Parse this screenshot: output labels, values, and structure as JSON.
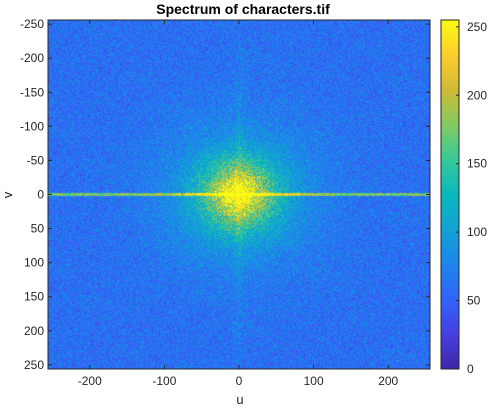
{
  "chart_data": {
    "type": "heatmap",
    "title": "Spectrum of characters.tif",
    "xlabel": "u",
    "ylabel": "v",
    "xlim": [
      -256,
      256
    ],
    "ylim": [
      -256,
      256
    ],
    "y_direction": "reversed",
    "x_ticks": [
      -200,
      -100,
      0,
      100,
      200
    ],
    "x_tick_labels": [
      "-200",
      "-100",
      "0",
      "100",
      "200"
    ],
    "y_ticks": [
      -250,
      -200,
      -150,
      -100,
      -50,
      0,
      50,
      100,
      150,
      200,
      250
    ],
    "y_tick_labels": [
      "-250",
      "-200",
      "-150",
      "-100",
      "-50",
      "0",
      "50",
      "100",
      "150",
      "200",
      "250"
    ],
    "colorbar": {
      "colormap": "parula",
      "range": [
        0,
        255
      ],
      "ticks": [
        0,
        50,
        100,
        150,
        200,
        250
      ],
      "tick_labels": [
        "0",
        "50",
        "100",
        "150",
        "200",
        "250"
      ]
    },
    "description_values": {
      "background_level": 60,
      "center_peak": 255,
      "horizontal_axis_line_level": 200
    }
  }
}
